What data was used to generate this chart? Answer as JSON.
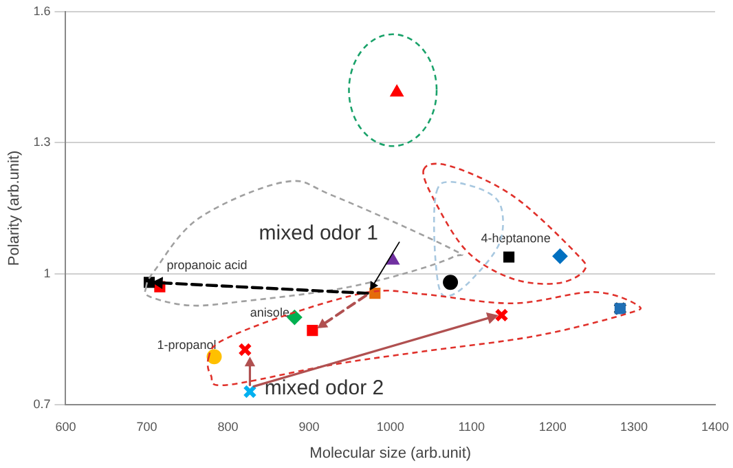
{
  "chart_data": {
    "type": "scatter",
    "xlabel": "Molecular size (arb.unit)",
    "ylabel": "Polarity (arb.unit)",
    "xlim": [
      600,
      1400
    ],
    "xticks": [
      600,
      700,
      800,
      900,
      1000,
      1100,
      1200,
      1300,
      1400
    ],
    "ylim": [
      0.7,
      1.6
    ],
    "yticks": [
      0.7,
      1,
      1.3,
      1.6
    ],
    "grid": "y",
    "legend": false,
    "series": [
      {
        "color": "#ff0000",
        "marker": "triangle",
        "x": [
          1008
        ],
        "values": [
          1.415
        ]
      },
      {
        "color": "#7030a0",
        "marker": "triangle",
        "x": [
          1003
        ],
        "values": [
          1.03
        ]
      },
      {
        "color": "#000000",
        "marker": "square",
        "x": [
          1146
        ],
        "values": [
          1.038
        ]
      },
      {
        "color": "#0070c0",
        "marker": "diamond",
        "x": [
          1209
        ],
        "values": [
          1.04
        ]
      },
      {
        "color": "#000000",
        "marker": "circle",
        "x": [
          1074
        ],
        "values": [
          0.98
        ]
      },
      {
        "color": "#000000",
        "marker": "square",
        "x": [
          703
        ],
        "values": [
          0.98
        ]
      },
      {
        "color": "#ff0000",
        "marker": "square",
        "x": [
          716
        ],
        "values": [
          0.97
        ]
      },
      {
        "color": "#e46c0a",
        "marker": "square",
        "x": [
          981
        ],
        "values": [
          0.955
        ]
      },
      {
        "color": "#00b050",
        "marker": "diamond",
        "x": [
          882
        ],
        "values": [
          0.9
        ]
      },
      {
        "color": "#ff0000",
        "marker": "square",
        "x": [
          904
        ],
        "values": [
          0.87
        ]
      },
      {
        "color": "#ff0000",
        "marker": "cross",
        "x": [
          1137,
          821
        ],
        "values": [
          0.905,
          0.826
        ]
      },
      {
        "color": "#1f6fb5",
        "marker": "square",
        "x": [
          1283
        ],
        "values": [
          0.92
        ]
      },
      {
        "color": "#000000",
        "marker": "cross",
        "x": [
          1283
        ],
        "values": [
          0.92
        ]
      },
      {
        "color": "#ffc000",
        "marker": "circle",
        "x": [
          783
        ],
        "values": [
          0.81
        ]
      },
      {
        "color": "#00b0f0",
        "marker": "cross",
        "x": [
          827
        ],
        "values": [
          0.73
        ]
      }
    ],
    "annotations": [
      {
        "text": "propanoic acid",
        "x": 703,
        "y": 0.98
      },
      {
        "text": "anisole",
        "x": 882,
        "y": 0.9
      },
      {
        "text": "1-propanol",
        "x": 783,
        "y": 0.81
      },
      {
        "text": "4-heptanone",
        "x": 1146,
        "y": 1.038
      },
      {
        "text": "mixed odor 1",
        "x": 981,
        "y": 0.955
      },
      {
        "text": "mixed odor 2",
        "x": 827,
        "y": 0.73
      }
    ]
  }
}
